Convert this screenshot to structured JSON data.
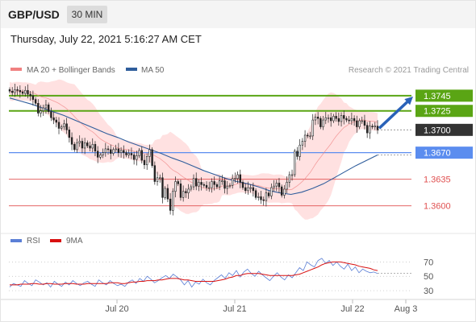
{
  "header": {
    "symbol": "GBP/USD",
    "timeframe": "30 MIN",
    "datetime": "Thursday, July 22, 2021 5:16:27 AM CET"
  },
  "legend": {
    "items": [
      {
        "label": "MA 20 + Bollinger Bands",
        "color": "#f08080"
      },
      {
        "label": "MA 50",
        "color": "#2f5d9c"
      }
    ],
    "credit": "Research © 2021 Trading Central"
  },
  "rsi_legend": {
    "items": [
      {
        "label": "RSI",
        "color": "#5b7fd6"
      },
      {
        "label": "9MA",
        "color": "#d81010"
      }
    ]
  },
  "colors": {
    "resistance": "#5aa514",
    "support": "#5b8def",
    "target": "#e05050",
    "price": "#333333",
    "arrow": "#2a62b8",
    "candle": "#222222",
    "band": "#ffd9d9",
    "ma20": "#f08080",
    "ma50": "#2f5d9c"
  },
  "chart_data": [
    {
      "type": "candlestick",
      "title": "",
      "ylim": [
        1.357,
        1.3765
      ],
      "x_ticks": [
        "Jul 20",
        "Jul 21",
        "Jul 22",
        "Aug 3"
      ],
      "levels": [
        {
          "value": 1.3745,
          "label": "1.3745",
          "kind": "resistance"
        },
        {
          "value": 1.3725,
          "label": "1.3725",
          "kind": "resistance"
        },
        {
          "value": 1.37,
          "label": "1.3700",
          "kind": "price"
        },
        {
          "value": 1.367,
          "label": "1.3670",
          "kind": "support"
        },
        {
          "value": 1.3635,
          "label": "1.3635",
          "kind": "target"
        },
        {
          "value": 1.36,
          "label": "1.3600",
          "kind": "target"
        }
      ],
      "close": [
        1.3751,
        1.3749,
        1.3753,
        1.3752,
        1.375,
        1.3748,
        1.3752,
        1.3747,
        1.3745,
        1.374,
        1.3735,
        1.3722,
        1.3725,
        1.3729,
        1.3733,
        1.3724,
        1.3716,
        1.3713,
        1.371,
        1.3702,
        1.3704,
        1.3708,
        1.37,
        1.369,
        1.3681,
        1.3674,
        1.3683,
        1.3685,
        1.3676,
        1.3683,
        1.3679,
        1.3676,
        1.3681,
        1.3672,
        1.3664,
        1.3667,
        1.367,
        1.3675,
        1.3674,
        1.3669,
        1.3674,
        1.3675,
        1.367,
        1.3673,
        1.367,
        1.3667,
        1.3669,
        1.3667,
        1.3661,
        1.3666,
        1.3673,
        1.366,
        1.3654,
        1.3665,
        1.3674,
        1.3653,
        1.3632,
        1.3637,
        1.3637,
        1.3611,
        1.3623,
        1.3609,
        1.3594,
        1.3619,
        1.3632,
        1.3629,
        1.3611,
        1.3619,
        1.3617,
        1.3622,
        1.3625,
        1.3636,
        1.3626,
        1.3631,
        1.3628,
        1.3627,
        1.3624,
        1.3624,
        1.3632,
        1.3628,
        1.3625,
        1.3633,
        1.3633,
        1.3623,
        1.3626,
        1.3627,
        1.3636,
        1.3636,
        1.3641,
        1.3631,
        1.3624,
        1.362,
        1.3624,
        1.3624,
        1.362,
        1.3611,
        1.3612,
        1.3608,
        1.3607,
        1.3617,
        1.3613,
        1.3624,
        1.3626,
        1.363,
        1.3625,
        1.3614,
        1.3622,
        1.3631,
        1.3641,
        1.3641,
        1.3672,
        1.3665,
        1.368,
        1.3685,
        1.3693,
        1.3692,
        1.3692,
        1.3713,
        1.3717,
        1.3715,
        1.3704,
        1.3713,
        1.3716,
        1.3716,
        1.3712,
        1.3718,
        1.3715,
        1.3711,
        1.3719,
        1.3715,
        1.3713,
        1.3712,
        1.3715,
        1.3712,
        1.3704,
        1.3712,
        1.3712,
        1.3706,
        1.3696,
        1.3705,
        1.3704,
        1.3705,
        1.37
      ],
      "series": [
        {
          "name": "MA 50",
          "values": [
            1.3742,
            1.3738,
            1.3734,
            1.3729,
            1.3724,
            1.3719,
            1.3713,
            1.3707,
            1.3701,
            1.3695,
            1.369,
            1.3684,
            1.3679,
            1.3674,
            1.3669,
            1.3663,
            1.3658,
            1.3652,
            1.3646,
            1.3641,
            1.3636,
            1.3632,
            1.3629,
            1.3625,
            1.362,
            1.3617,
            1.3615,
            1.3618,
            1.3623,
            1.3629,
            1.3637,
            1.3645,
            1.3653,
            1.366,
            1.3667
          ]
        }
      ],
      "rsi": {
        "ylim": [
          20,
          85
        ],
        "levels": [
          70,
          50,
          30
        ],
        "rsi": [
          35,
          40,
          38,
          36,
          44,
          40,
          37,
          45,
          42,
          38,
          41,
          35,
          43,
          39,
          36,
          42,
          38,
          44,
          40,
          37,
          41,
          43,
          39,
          36,
          45,
          41,
          38,
          44,
          40,
          37,
          39,
          36,
          42,
          45,
          40,
          47,
          43,
          50,
          46,
          41,
          44,
          48,
          51,
          47,
          53,
          49,
          45,
          38,
          44,
          35,
          42,
          39,
          46,
          41,
          38,
          44,
          48,
          52,
          47,
          55,
          51,
          58,
          49,
          56,
          60,
          54,
          50,
          57,
          52,
          48,
          44,
          50,
          55,
          49,
          45,
          52,
          48,
          55,
          62,
          58,
          70,
          66,
          63,
          72,
          75,
          68,
          72,
          65,
          70,
          64,
          60,
          67,
          58,
          63,
          55,
          60,
          57,
          55,
          56,
          54
        ],
        "ma9": [
          38,
          38,
          38,
          39,
          39,
          39,
          40,
          40,
          39,
          39,
          40,
          40,
          39,
          39,
          39,
          40,
          40,
          40,
          39,
          39,
          39,
          40,
          40,
          40,
          40,
          40,
          40,
          41,
          41,
          41,
          40,
          40,
          41,
          42,
          42,
          43,
          43,
          44,
          44,
          44,
          45,
          45,
          46,
          47,
          47,
          47,
          46,
          45,
          45,
          44,
          43,
          43,
          43,
          43,
          43,
          43,
          44,
          45,
          46,
          48,
          49,
          51,
          51,
          53,
          54,
          54,
          54,
          54,
          53,
          52,
          51,
          51,
          51,
          51,
          51,
          51,
          51,
          52,
          53,
          55,
          57,
          59,
          61,
          63,
          66,
          68,
          69,
          70,
          70,
          70,
          69,
          68,
          67,
          66,
          64,
          63,
          62,
          61,
          59,
          58
        ]
      }
    }
  ]
}
